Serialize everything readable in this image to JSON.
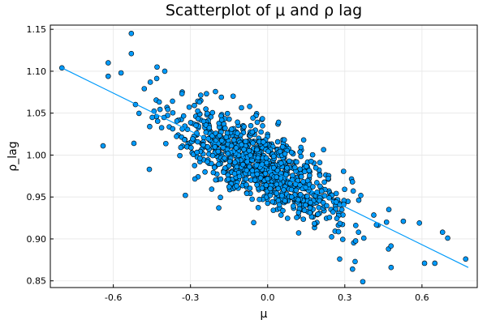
{
  "chart_data": {
    "type": "scatter",
    "title": "Scatterplot of μ and ρ lag",
    "xlabel": "μ",
    "ylabel": "ρ_lag",
    "xlim": [
      -0.845,
      0.815
    ],
    "ylim": [
      0.842,
      1.155
    ],
    "x_ticks": [
      -0.6,
      -0.3,
      0.0,
      0.3,
      0.6
    ],
    "x_tick_labels": [
      "-0.6",
      "-0.3",
      "0.0",
      "0.3",
      "0.6"
    ],
    "y_ticks": [
      0.85,
      0.9,
      0.95,
      1.0,
      1.05,
      1.1,
      1.15
    ],
    "y_tick_labels": [
      "0.85",
      "0.90",
      "0.95",
      "1.00",
      "1.05",
      "1.10",
      "1.15"
    ],
    "grid": true,
    "legend": "none",
    "point_color": "#009AFA",
    "point_stroke": "#000000",
    "trend_color": "#009AFA",
    "trend_line": {
      "x": [
        -0.8,
        0.78
      ],
      "y": [
        1.104,
        0.866
      ]
    },
    "point_count": 1000,
    "points_notable": [
      [
        -0.8,
        1.104
      ],
      [
        -0.62,
        1.11
      ],
      [
        -0.62,
        1.094
      ],
      [
        -0.57,
        1.098
      ],
      [
        -0.53,
        1.121
      ],
      [
        -0.53,
        1.145
      ],
      [
        -0.64,
        1.011
      ],
      [
        -0.52,
        1.014
      ],
      [
        -0.46,
        0.983
      ],
      [
        -0.43,
        1.105
      ],
      [
        -0.4,
        1.1
      ],
      [
        -0.32,
        0.952
      ],
      [
        -0.19,
        0.937
      ],
      [
        -0.18,
        1.069
      ],
      [
        0.37,
        0.849
      ],
      [
        0.33,
        0.864
      ],
      [
        0.28,
        0.876
      ],
      [
        0.34,
        0.873
      ],
      [
        0.48,
        0.866
      ],
      [
        0.59,
        0.919
      ],
      [
        0.61,
        0.871
      ],
      [
        0.65,
        0.871
      ],
      [
        0.77,
        0.876
      ],
      [
        0.7,
        0.901
      ],
      [
        0.68,
        0.908
      ],
      [
        0.47,
        0.888
      ],
      [
        0.14,
        1.018
      ],
      [
        -0.07,
        1.058
      ],
      [
        0.04,
        1.037
      ],
      [
        -0.26,
        1.065
      ]
    ]
  }
}
